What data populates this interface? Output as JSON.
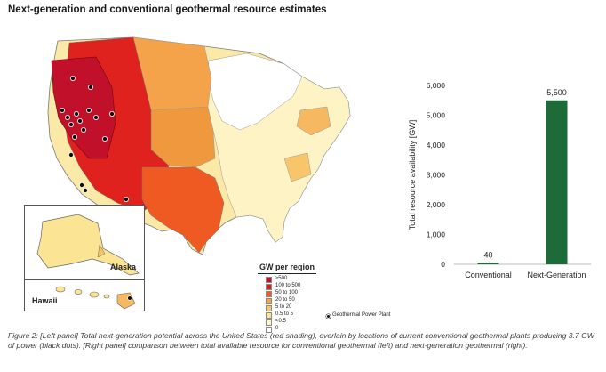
{
  "title": "Next-generation and conventional geothermal resource estimates",
  "map": {
    "insets": [
      {
        "label": "Alaska"
      },
      {
        "label": "Hawaii"
      }
    ],
    "legend": {
      "title": "GW per region",
      "items": [
        {
          "label": "≥500",
          "color": "#c0102a"
        },
        {
          "label": "100 to 500",
          "color": "#e0221e"
        },
        {
          "label": "50 to 100",
          "color": "#ee5a21"
        },
        {
          "label": "20 to 50",
          "color": "#f4a34a"
        },
        {
          "label": "5 to 20",
          "color": "#f8c56a"
        },
        {
          "label": "0.5 to 5",
          "color": "#fbe594"
        },
        {
          "label": "<0.5",
          "color": "#fdf6cf"
        },
        {
          "label": "0",
          "color": "#ffffff"
        }
      ],
      "plant_label": "Geothermal Power Plant"
    }
  },
  "chart_data": {
    "type": "bar",
    "categories": [
      "Conventional",
      "Next-Generation"
    ],
    "values": [
      40,
      5500
    ],
    "data_labels": [
      "40",
      "5,500"
    ],
    "ylabel": "Total resource availability [GW]",
    "ylim": [
      0,
      6000
    ],
    "yticks": [
      0,
      1000,
      2000,
      3000,
      4000,
      5000,
      6000
    ],
    "ytick_labels": [
      "0",
      "1,000",
      "2,000",
      "3,000",
      "4,000",
      "5,000",
      "6,000"
    ],
    "bar_color": "#1e6b3a",
    "grid": false
  },
  "caption": "Figure 2: [Left panel] Total next-generation potential across the United States (red shading), overlain by locations of current conventional geothermal plants producing 3.7 GW of power (black dots). [Right panel] comparison between total available resource for conventional geothermal (left) and next-generation geothermal (right)."
}
